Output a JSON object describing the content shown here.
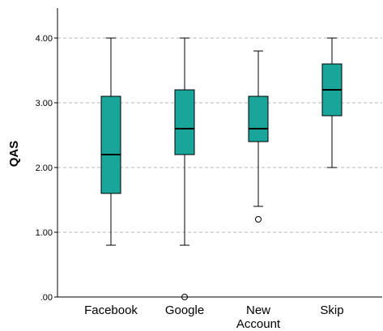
{
  "chart_data": {
    "type": "boxplot",
    "title": "",
    "xlabel": "",
    "ylabel": "QAS",
    "ylim": [
      0,
      4.4
    ],
    "yticks": [
      0,
      1,
      2,
      3,
      4
    ],
    "ytick_labels": [
      ".00",
      "1.00",
      "2.00",
      "3.00",
      "4.00"
    ],
    "grid": "horizontal-dashed",
    "box_color": "#1aa59a",
    "categories": [
      "Facebook",
      "Google",
      "New Account",
      "Skip"
    ],
    "category_label_lines": [
      [
        "Facebook"
      ],
      [
        "Google"
      ],
      [
        "New",
        "Account"
      ],
      [
        "Skip"
      ]
    ],
    "boxes": [
      {
        "category": "Facebook",
        "whisker_low": 0.8,
        "q1": 1.6,
        "median": 2.2,
        "q3": 3.1,
        "whisker_high": 4.0,
        "outliers": []
      },
      {
        "category": "Google",
        "whisker_low": 0.8,
        "q1": 2.2,
        "median": 2.6,
        "q3": 3.2,
        "whisker_high": 4.0,
        "outliers": [
          0.0
        ]
      },
      {
        "category": "New Account",
        "whisker_low": 1.4,
        "q1": 2.4,
        "median": 2.6,
        "q3": 3.1,
        "whisker_high": 3.8,
        "outliers": [
          1.2
        ]
      },
      {
        "category": "Skip",
        "whisker_low": 2.0,
        "q1": 2.8,
        "median": 3.2,
        "q3": 3.6,
        "whisker_high": 4.0,
        "outliers": []
      }
    ]
  }
}
